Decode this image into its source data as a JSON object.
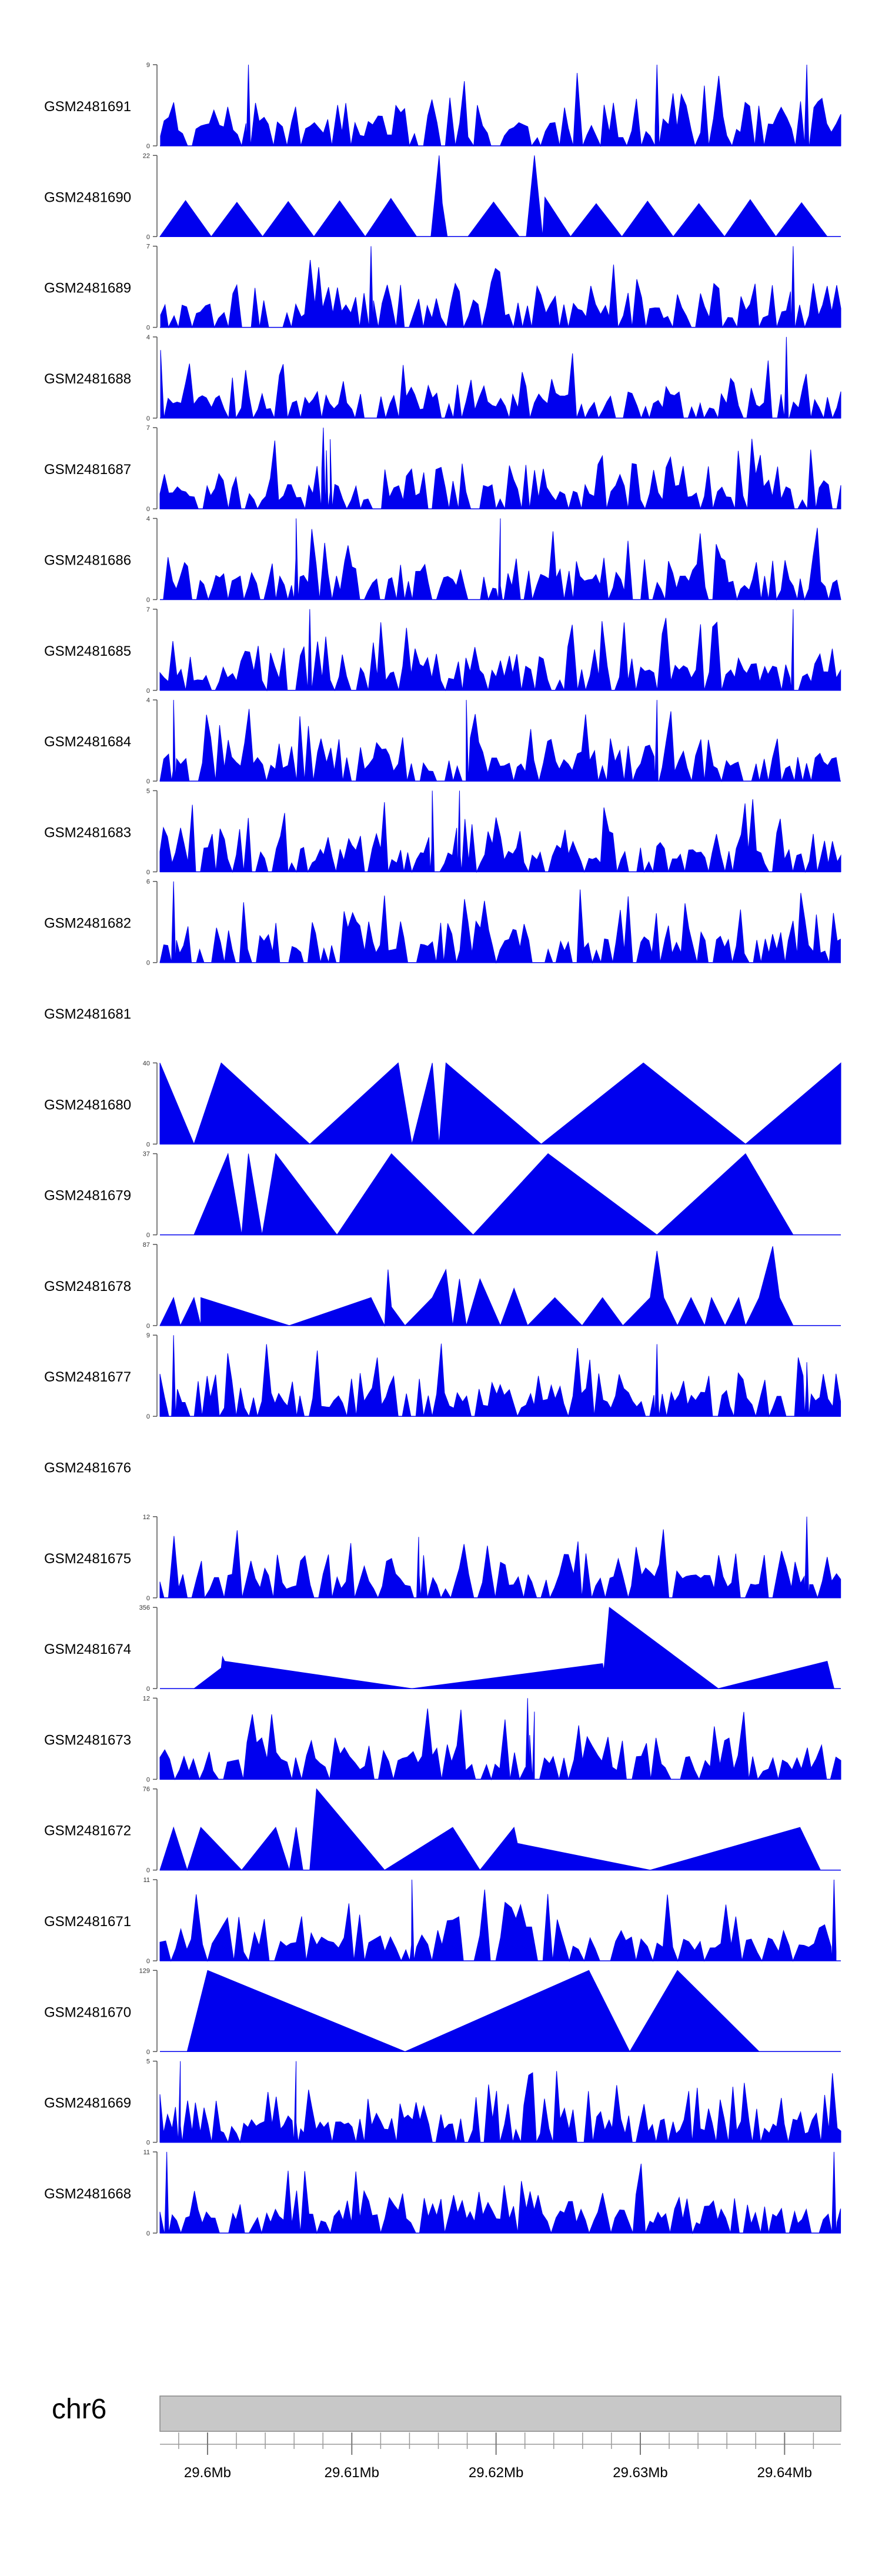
{
  "chart_data": {
    "type": "area",
    "tracks": [
      {
        "name": "GSM2481691",
        "ymax": "9",
        "max": 9,
        "seed": 11,
        "kind": "spiky",
        "n": 150,
        "peaks": [
          [
            0.13,
            9
          ],
          [
            0.73,
            9
          ],
          [
            0.95,
            9
          ]
        ]
      },
      {
        "name": "GSM2481690",
        "ymax": "22",
        "max": 22,
        "seed": 23,
        "kind": "tri",
        "n": 26,
        "xstart": 0.0,
        "xend": 0.98,
        "peaks": [
          [
            0.41,
            22
          ],
          [
            0.55,
            22
          ]
        ]
      },
      {
        "name": "GSM2481689",
        "ymax": "7",
        "max": 7,
        "seed": 35,
        "kind": "spiky",
        "n": 150,
        "peaks": [
          [
            0.31,
            7
          ],
          [
            0.93,
            7
          ]
        ]
      },
      {
        "name": "GSM2481688",
        "ymax": "4",
        "max": 4,
        "seed": 47,
        "kind": "spiky",
        "n": 160,
        "peaks": [
          [
            0.92,
            4
          ]
        ]
      },
      {
        "name": "GSM2481687",
        "ymax": "7",
        "max": 7,
        "seed": 59,
        "kind": "spiky",
        "n": 160,
        "peaks": [
          [
            0.24,
            7
          ],
          [
            0.25,
            6
          ]
        ]
      },
      {
        "name": "GSM2481686",
        "ymax": "4",
        "max": 4,
        "seed": 71,
        "kind": "spiky",
        "n": 170,
        "peaks": [
          [
            0.2,
            4
          ],
          [
            0.5,
            4
          ]
        ]
      },
      {
        "name": "GSM2481685",
        "ymax": "7",
        "max": 7,
        "seed": 83,
        "kind": "spiky",
        "n": 160,
        "peaks": [
          [
            0.22,
            7
          ],
          [
            0.93,
            7
          ]
        ]
      },
      {
        "name": "GSM2481684",
        "ymax": "4",
        "max": 4,
        "seed": 95,
        "kind": "spiky",
        "n": 160,
        "peaks": [
          [
            0.02,
            4
          ],
          [
            0.45,
            4
          ],
          [
            0.73,
            4
          ]
        ]
      },
      {
        "name": "GSM2481683",
        "ymax": "5",
        "max": 5,
        "seed": 107,
        "kind": "spiky",
        "n": 170,
        "peaks": [
          [
            0.4,
            5
          ],
          [
            0.44,
            5
          ]
        ]
      },
      {
        "name": "GSM2481682",
        "ymax": "6",
        "max": 6,
        "seed": 119,
        "kind": "spiky",
        "n": 170,
        "peaks": [
          [
            0.02,
            6
          ]
        ]
      },
      {
        "name": "GSM2481681",
        "ymax": "",
        "max": 0,
        "seed": 0,
        "kind": "empty",
        "n": 0,
        "peaks": []
      },
      {
        "name": "GSM2481680",
        "ymax": "40",
        "max": 40,
        "seed": 0,
        "kind": "points",
        "n": 0,
        "points": [
          [
            0.0,
            40
          ],
          [
            0.05,
            0
          ],
          [
            0.09,
            40
          ],
          [
            0.22,
            0
          ],
          [
            0.35,
            40
          ],
          [
            0.37,
            0
          ],
          [
            0.4,
            40
          ],
          [
            0.41,
            0
          ],
          [
            0.42,
            40
          ],
          [
            0.56,
            0
          ],
          [
            0.71,
            40
          ],
          [
            0.86,
            0
          ],
          [
            1.0,
            40
          ],
          [
            1.0,
            0
          ]
        ]
      },
      {
        "name": "GSM2481679",
        "ymax": "37",
        "max": 37,
        "seed": 0,
        "kind": "points",
        "n": 0,
        "points": [
          [
            0.05,
            0
          ],
          [
            0.1,
            37
          ],
          [
            0.12,
            0
          ],
          [
            0.13,
            37
          ],
          [
            0.15,
            0
          ],
          [
            0.17,
            37
          ],
          [
            0.26,
            0
          ],
          [
            0.34,
            37
          ],
          [
            0.46,
            0
          ],
          [
            0.57,
            37
          ],
          [
            0.73,
            0
          ],
          [
            0.86,
            37
          ],
          [
            0.93,
            0
          ]
        ]
      },
      {
        "name": "GSM2481678",
        "ymax": "87",
        "max": 87,
        "seed": 0,
        "kind": "points",
        "n": 0,
        "points": [
          [
            0.0,
            0
          ],
          [
            0.02,
            30
          ],
          [
            0.03,
            0
          ],
          [
            0.05,
            30
          ],
          [
            0.06,
            0
          ],
          [
            0.06,
            30
          ],
          [
            0.19,
            0
          ],
          [
            0.31,
            30
          ],
          [
            0.33,
            0
          ],
          [
            0.335,
            60
          ],
          [
            0.34,
            20
          ],
          [
            0.36,
            0
          ],
          [
            0.4,
            30
          ],
          [
            0.42,
            60
          ],
          [
            0.43,
            0
          ],
          [
            0.44,
            50
          ],
          [
            0.45,
            0
          ],
          [
            0.47,
            50
          ],
          [
            0.5,
            0
          ],
          [
            0.52,
            40
          ],
          [
            0.54,
            0
          ],
          [
            0.58,
            30
          ],
          [
            0.62,
            0
          ],
          [
            0.65,
            30
          ],
          [
            0.68,
            0
          ],
          [
            0.72,
            30
          ],
          [
            0.73,
            80
          ],
          [
            0.74,
            30
          ],
          [
            0.76,
            0
          ],
          [
            0.78,
            30
          ],
          [
            0.8,
            0
          ],
          [
            0.81,
            30
          ],
          [
            0.83,
            0
          ],
          [
            0.85,
            30
          ],
          [
            0.86,
            0
          ],
          [
            0.88,
            30
          ],
          [
            0.9,
            85
          ],
          [
            0.91,
            30
          ],
          [
            0.93,
            0
          ]
        ]
      },
      {
        "name": "GSM2481677",
        "ymax": "9",
        "max": 9,
        "seed": 131,
        "kind": "spiky",
        "n": 160,
        "peaks": [
          [
            0.02,
            9
          ],
          [
            0.73,
            8
          ],
          [
            0.95,
            6
          ]
        ]
      },
      {
        "name": "GSM2481676",
        "ymax": "",
        "max": 0,
        "seed": 0,
        "kind": "empty",
        "n": 0,
        "peaks": []
      },
      {
        "name": "GSM2481675",
        "ymax": "12",
        "max": 12,
        "seed": 143,
        "kind": "spiky",
        "n": 150,
        "peaks": [
          [
            0.95,
            12
          ],
          [
            0.38,
            9
          ]
        ]
      },
      {
        "name": "GSM2481674",
        "ymax": "356",
        "max": 356,
        "seed": 0,
        "kind": "points",
        "n": 0,
        "points": [
          [
            0.05,
            0
          ],
          [
            0.09,
            90
          ],
          [
            0.092,
            140
          ],
          [
            0.095,
            120
          ],
          [
            0.37,
            0
          ],
          [
            0.65,
            110
          ],
          [
            0.652,
            80
          ],
          [
            0.66,
            356
          ],
          [
            0.82,
            0
          ],
          [
            0.98,
            120
          ],
          [
            0.99,
            0
          ]
        ]
      },
      {
        "name": "GSM2481673",
        "ymax": "12",
        "max": 12,
        "seed": 155,
        "kind": "spiky",
        "n": 140,
        "peaks": [
          [
            0.54,
            12
          ],
          [
            0.55,
            10
          ]
        ]
      },
      {
        "name": "GSM2481672",
        "ymax": "76",
        "max": 76,
        "seed": 0,
        "kind": "points",
        "n": 0,
        "points": [
          [
            0.0,
            0
          ],
          [
            0.02,
            40
          ],
          [
            0.04,
            0
          ],
          [
            0.06,
            40
          ],
          [
            0.12,
            0
          ],
          [
            0.17,
            40
          ],
          [
            0.19,
            0
          ],
          [
            0.2,
            40
          ],
          [
            0.21,
            0
          ],
          [
            0.22,
            0
          ],
          [
            0.23,
            76
          ],
          [
            0.33,
            0
          ],
          [
            0.43,
            40
          ],
          [
            0.47,
            0
          ],
          [
            0.52,
            40
          ],
          [
            0.525,
            25
          ],
          [
            0.72,
            0
          ],
          [
            0.94,
            40
          ],
          [
            0.97,
            0
          ]
        ]
      },
      {
        "name": "GSM2481671",
        "ymax": "11",
        "max": 11,
        "seed": 167,
        "kind": "spiky",
        "n": 130,
        "peaks": [
          [
            0.37,
            11
          ],
          [
            0.99,
            11
          ]
        ]
      },
      {
        "name": "GSM2481670",
        "ymax": "129",
        "max": 129,
        "seed": 0,
        "kind": "points",
        "n": 0,
        "points": [
          [
            0.04,
            0
          ],
          [
            0.07,
            129
          ],
          [
            0.36,
            0
          ],
          [
            0.63,
            129
          ],
          [
            0.69,
            0
          ],
          [
            0.76,
            129
          ],
          [
            0.88,
            0
          ]
        ]
      },
      {
        "name": "GSM2481669",
        "ymax": "5",
        "max": 5,
        "seed": 179,
        "kind": "spiky",
        "n": 170,
        "peaks": [
          [
            0.2,
            5
          ],
          [
            0.03,
            5
          ]
        ]
      },
      {
        "name": "GSM2481668",
        "ymax": "11",
        "max": 11,
        "seed": 191,
        "kind": "spiky",
        "n": 160,
        "peaks": [
          [
            0.01,
            11
          ],
          [
            0.99,
            11
          ]
        ]
      }
    ],
    "ideogram": {
      "chromosome": "chr6",
      "xlim": [
        29.5967,
        29.6439
      ],
      "tick_labels": [
        {
          "label": "29.6Mb",
          "value": 29.6
        },
        {
          "label": "29.61Mb",
          "value": 29.61
        },
        {
          "label": "29.62Mb",
          "value": 29.62
        },
        {
          "label": "29.63Mb",
          "value": 29.63
        },
        {
          "label": "29.64Mb",
          "value": 29.64
        }
      ],
      "minor_step": 0.002
    },
    "fill_color": "#0000ee",
    "ideogram_color": "#c8c8c8"
  }
}
